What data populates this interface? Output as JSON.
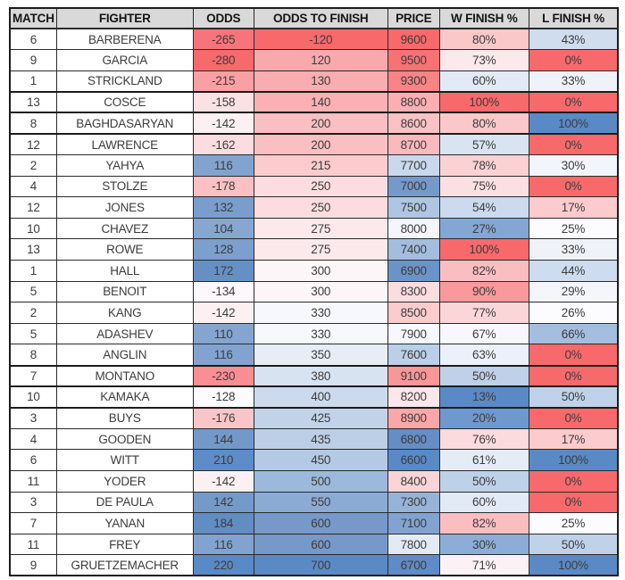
{
  "colors": {
    "header_bg": "#D9D9D9",
    "grid_border": "#2A2A2A",
    "scale_red": "#F8696B",
    "scale_white": "#FCFCFF",
    "scale_blue": "#5A8AC6"
  },
  "chart_data": {
    "type": "table",
    "columns": [
      "MATCH",
      "FIGHTER",
      "ODDS",
      "ODDS TO FINISH",
      "PRICE",
      "W FINISH %",
      "L FINISH %"
    ],
    "rows": [
      {
        "match": "6",
        "fighter": "BARBERENA",
        "odds": "-265",
        "odds_to_finish": "-120",
        "price": "9600",
        "w_finish": "80%",
        "l_finish": "43%",
        "thick_top": false,
        "cell_colors": {
          "odds": "#F7757A",
          "odds_to_finish": "#F8696B",
          "price": "#F8696B",
          "w_finish": "#FBC8CA",
          "l_finish": "#CFDDEF"
        }
      },
      {
        "match": "9",
        "fighter": "GARCIA",
        "odds": "-280",
        "odds_to_finish": "120",
        "price": "9500",
        "w_finish": "73%",
        "l_finish": "0%",
        "thick_top": false,
        "cell_colors": {
          "odds": "#F8696B",
          "odds_to_finish": "#F9A9AC",
          "price": "#F87274",
          "w_finish": "#FCE9EC",
          "l_finish": "#F8696B"
        }
      },
      {
        "match": "1",
        "fighter": "STRICKLAND",
        "odds": "-215",
        "odds_to_finish": "130",
        "price": "9300",
        "w_finish": "60%",
        "l_finish": "33%",
        "thick_top": false,
        "cell_colors": {
          "odds": "#F9A0A3",
          "odds_to_finish": "#F9ADB0",
          "price": "#F98486",
          "w_finish": "#E2EAF6",
          "l_finish": "#EFF3F9"
        }
      },
      {
        "match": "13",
        "fighter": "COSCE",
        "odds": "-158",
        "odds_to_finish": "140",
        "price": "8800",
        "w_finish": "100%",
        "l_finish": "0%",
        "thick_top": true,
        "cell_colors": {
          "odds": "#FBE1E3",
          "odds_to_finish": "#FAB1B4",
          "price": "#FAB0B3",
          "w_finish": "#F8696B",
          "l_finish": "#F8696B"
        }
      },
      {
        "match": "8",
        "fighter": "BAGHDASARYAN",
        "odds": "-142",
        "odds_to_finish": "200",
        "price": "8600",
        "w_finish": "80%",
        "l_finish": "100%",
        "thick_top": true,
        "cell_colors": {
          "odds": "#FCF0F2",
          "odds_to_finish": "#FABFC2",
          "price": "#FAC2C5",
          "w_finish": "#FBC8CA",
          "l_finish": "#5A8AC6"
        }
      },
      {
        "match": "12",
        "fighter": "LAWRENCE",
        "odds": "-162",
        "odds_to_finish": "200",
        "price": "8700",
        "w_finish": "57%",
        "l_finish": "0%",
        "thick_top": true,
        "cell_colors": {
          "odds": "#FBDDDF",
          "odds_to_finish": "#FABFC2",
          "price": "#FAB9BC",
          "w_finish": "#D9E4F3",
          "l_finish": "#F8696B"
        }
      },
      {
        "match": "2",
        "fighter": "YAHYA",
        "odds": "116",
        "odds_to_finish": "215",
        "price": "7700",
        "w_finish": "78%",
        "l_finish": "30%",
        "thick_top": false,
        "cell_colors": {
          "odds": "#82A3CF",
          "odds_to_finish": "#FBCBCD",
          "price": "#C9D8ED",
          "w_finish": "#FBD1D4",
          "l_finish": "#F2F5FB"
        }
      },
      {
        "match": "4",
        "fighter": "STOLZE",
        "odds": "-178",
        "odds_to_finish": "250",
        "price": "7000",
        "w_finish": "75%",
        "l_finish": "0%",
        "thick_top": false,
        "cell_colors": {
          "odds": "#FAC0C3",
          "odds_to_finish": "#FCDCDE",
          "price": "#7599CB",
          "w_finish": "#FCDFE2",
          "l_finish": "#F8696B"
        }
      },
      {
        "match": "12",
        "fighter": "JONES",
        "odds": "132",
        "odds_to_finish": "250",
        "price": "7500",
        "w_finish": "54%",
        "l_finish": "17%",
        "thick_top": false,
        "cell_colors": {
          "odds": "#7A9DCC",
          "odds_to_finish": "#FCDCDE",
          "price": "#AFC6E2",
          "w_finish": "#CBDAEE",
          "l_finish": "#FBCBCE"
        }
      },
      {
        "match": "10",
        "fighter": "CHAVEZ",
        "odds": "104",
        "odds_to_finish": "275",
        "price": "8000",
        "w_finish": "27%",
        "l_finish": "25%",
        "thick_top": false,
        "cell_colors": {
          "odds": "#87A7D1",
          "odds_to_finish": "#FCE9EB",
          "price": "#F4F6FB",
          "w_finish": "#83A7D5",
          "l_finish": "#FCFBFE"
        }
      },
      {
        "match": "13",
        "fighter": "ROWE",
        "odds": "128",
        "odds_to_finish": "275",
        "price": "7400",
        "w_finish": "100%",
        "l_finish": "33%",
        "thick_top": false,
        "cell_colors": {
          "odds": "#7C9FCD",
          "odds_to_finish": "#FCE9EB",
          "price": "#A3BDDE",
          "w_finish": "#F8696B",
          "l_finish": "#EFF3F9"
        }
      },
      {
        "match": "1",
        "fighter": "HALL",
        "odds": "172",
        "odds_to_finish": "300",
        "price": "6900",
        "w_finish": "82%",
        "l_finish": "44%",
        "thick_top": false,
        "cell_colors": {
          "odds": "#6690C4",
          "odds_to_finish": "#FDF6F8",
          "price": "#6C93C7",
          "w_finish": "#FABEC1",
          "l_finish": "#CDDCEE"
        }
      },
      {
        "match": "5",
        "fighter": "BENOIT",
        "odds": "-134",
        "odds_to_finish": "300",
        "price": "8300",
        "w_finish": "90%",
        "l_finish": "29%",
        "thick_top": false,
        "cell_colors": {
          "odds": "#FCF8FB",
          "odds_to_finish": "#FDF6F8",
          "price": "#FBDDE0",
          "w_finish": "#F9999B",
          "l_finish": "#F4F6FC"
        }
      },
      {
        "match": "2",
        "fighter": "KANG",
        "odds": "-142",
        "odds_to_finish": "330",
        "price": "8500",
        "w_finish": "77%",
        "l_finish": "26%",
        "thick_top": false,
        "cell_colors": {
          "odds": "#FCF0F2",
          "odds_to_finish": "#F6F8FD",
          "price": "#FBCBCE",
          "w_finish": "#FBD6D9",
          "l_finish": "#FCFCFF"
        }
      },
      {
        "match": "5",
        "fighter": "ADASHEV",
        "odds": "110",
        "odds_to_finish": "330",
        "price": "7900",
        "w_finish": "67%",
        "l_finish": "66%",
        "thick_top": false,
        "cell_colors": {
          "odds": "#84A5D0",
          "odds_to_finish": "#F6F8FD",
          "price": "#F6F8FD",
          "w_finish": "#F6F8FD",
          "l_finish": "#A4BEE0"
        }
      },
      {
        "match": "8",
        "fighter": "ANGLIN",
        "odds": "116",
        "odds_to_finish": "350",
        "price": "7600",
        "w_finish": "63%",
        "l_finish": "0%",
        "thick_top": false,
        "cell_colors": {
          "odds": "#82A3CF",
          "odds_to_finish": "#E6EDF6",
          "price": "#BCCFE8",
          "w_finish": "#EBF0FA",
          "l_finish": "#F8696B"
        }
      },
      {
        "match": "7",
        "fighter": "MONTANO",
        "odds": "-230",
        "odds_to_finish": "380",
        "price": "9100",
        "w_finish": "50%",
        "l_finish": "0%",
        "thick_top": true,
        "cell_colors": {
          "odds": "#F98F93",
          "odds_to_finish": "#D8E3F1",
          "price": "#F99698",
          "w_finish": "#BFD0E9",
          "l_finish": "#F8696B"
        }
      },
      {
        "match": "10",
        "fighter": "KAMAKA",
        "odds": "-128",
        "odds_to_finish": "400",
        "price": "8200",
        "w_finish": "13%",
        "l_finish": "50%",
        "thick_top": true,
        "cell_colors": {
          "odds": "#FCFCFF",
          "odds_to_finish": "#CDDAED",
          "price": "#FBE6E9",
          "w_finish": "#5A8AC6",
          "l_finish": "#C0D2E9"
        }
      },
      {
        "match": "3",
        "fighter": "BUYS",
        "odds": "-176",
        "odds_to_finish": "425",
        "price": "8900",
        "w_finish": "20%",
        "l_finish": "0%",
        "thick_top": true,
        "cell_colors": {
          "odds": "#FAC5C8",
          "odds_to_finish": "#C2D3E9",
          "price": "#FAA7AA",
          "w_finish": "#6F98CE",
          "l_finish": "#F8696B"
        }
      },
      {
        "match": "4",
        "fighter": "GOODEN",
        "odds": "144",
        "odds_to_finish": "435",
        "price": "6800",
        "w_finish": "76%",
        "l_finish": "17%",
        "thick_top": false,
        "cell_colors": {
          "odds": "#7399CA",
          "odds_to_finish": "#BCCFE7",
          "price": "#668EC5",
          "w_finish": "#FCDBDE",
          "l_finish": "#FBCBCE"
        }
      },
      {
        "match": "6",
        "fighter": "WITT",
        "odds": "210",
        "odds_to_finish": "450",
        "price": "6600",
        "w_finish": "61%",
        "l_finish": "100%",
        "thick_top": false,
        "cell_colors": {
          "odds": "#5E8CC7",
          "odds_to_finish": "#B4C9E4",
          "price": "#5A8AC6",
          "w_finish": "#E5ECF7",
          "l_finish": "#5A8AC6"
        }
      },
      {
        "match": "11",
        "fighter": "YODER",
        "odds": "-142",
        "odds_to_finish": "500",
        "price": "8400",
        "w_finish": "50%",
        "l_finish": "0%",
        "thick_top": false,
        "cell_colors": {
          "odds": "#FCF0F2",
          "odds_to_finish": "#9CB8DB",
          "price": "#FBD4D7",
          "w_finish": "#BFD0E9",
          "l_finish": "#F8696B"
        }
      },
      {
        "match": "3",
        "fighter": "DE PAULA",
        "odds": "142",
        "odds_to_finish": "550",
        "price": "7300",
        "w_finish": "60%",
        "l_finish": "0%",
        "thick_top": false,
        "cell_colors": {
          "odds": "#749ACA",
          "odds_to_finish": "#8BABD4",
          "price": "#97B4D8",
          "w_finish": "#E2EAF6",
          "l_finish": "#F8696B"
        }
      },
      {
        "match": "7",
        "fighter": "YANAN",
        "odds": "184",
        "odds_to_finish": "600",
        "price": "7100",
        "w_finish": "82%",
        "l_finish": "25%",
        "thick_top": false,
        "cell_colors": {
          "odds": "#628DC3",
          "odds_to_finish": "#7699C9",
          "price": "#82A3CF",
          "w_finish": "#FABEC1",
          "l_finish": "#FCFBFE"
        }
      },
      {
        "match": "11",
        "fighter": "FREY",
        "odds": "116",
        "odds_to_finish": "600",
        "price": "7800",
        "w_finish": "30%",
        "l_finish": "50%",
        "thick_top": false,
        "cell_colors": {
          "odds": "#82A3CF",
          "odds_to_finish": "#7699C9",
          "price": "#E3EAF5",
          "w_finish": "#8BADD7",
          "l_finish": "#C0D2E9"
        }
      },
      {
        "match": "9",
        "fighter": "GRUETZEMACHER",
        "odds": "220",
        "odds_to_finish": "700",
        "price": "6700",
        "w_finish": "71%",
        "l_finish": "100%",
        "thick_top": false,
        "cell_colors": {
          "odds": "#5A8AC6",
          "odds_to_finish": "#5A8AC6",
          "price": "#5F8CC6",
          "w_finish": "#FCF2F5",
          "l_finish": "#5A8AC6"
        }
      }
    ]
  }
}
